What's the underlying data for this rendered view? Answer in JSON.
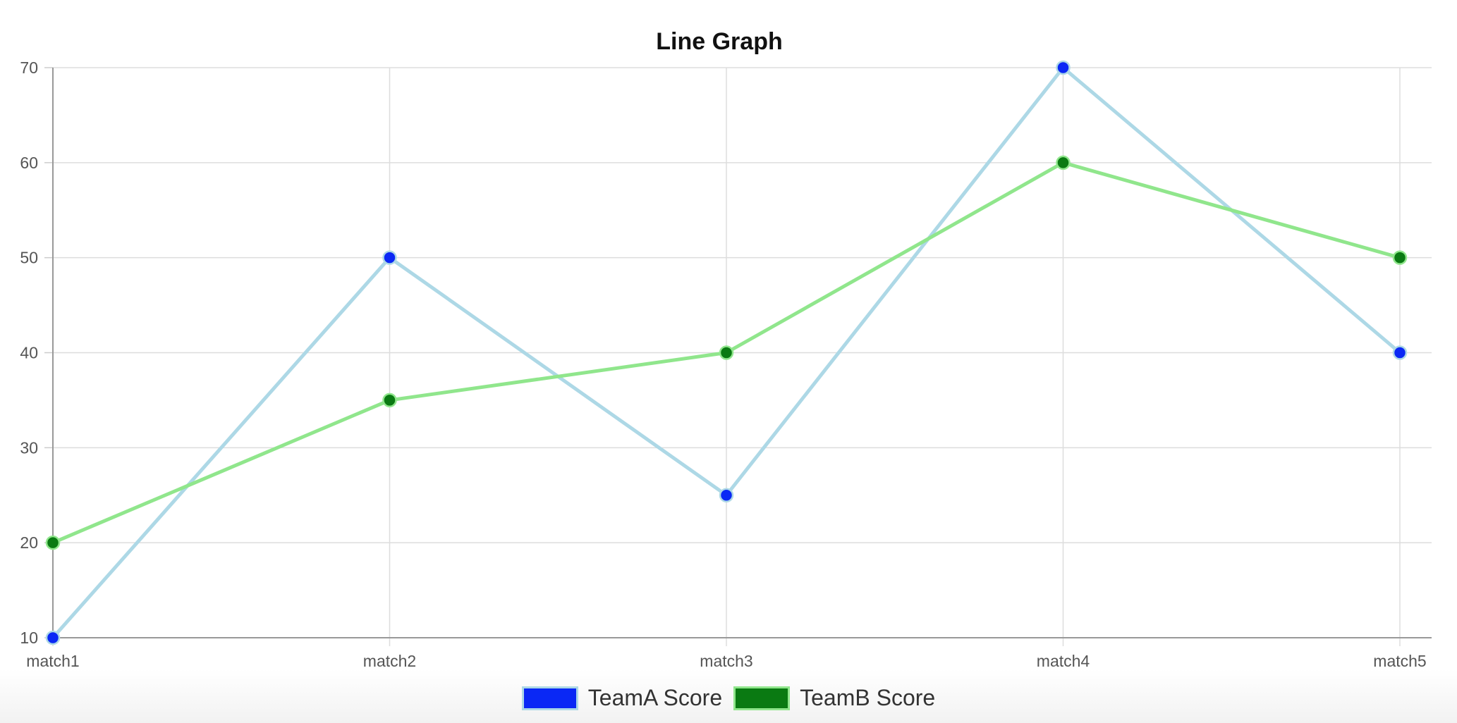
{
  "chart_data": {
    "type": "line",
    "title": "Line Graph",
    "categories": [
      "match1",
      "match2",
      "match3",
      "match4",
      "match5"
    ],
    "ylim": [
      10,
      70
    ],
    "yticks": [
      10,
      20,
      30,
      40,
      50,
      60,
      70
    ],
    "grid": true,
    "legend_position": "bottom-center",
    "series": [
      {
        "name": "TeamA Score",
        "values": [
          10,
          50,
          25,
          70,
          40
        ],
        "line_color": "#add8e6",
        "point_color": "#0a28f5"
      },
      {
        "name": "TeamB Score",
        "values": [
          20,
          35,
          40,
          60,
          50
        ],
        "line_color": "#90e68c",
        "point_color": "#0a7a12"
      }
    ]
  }
}
